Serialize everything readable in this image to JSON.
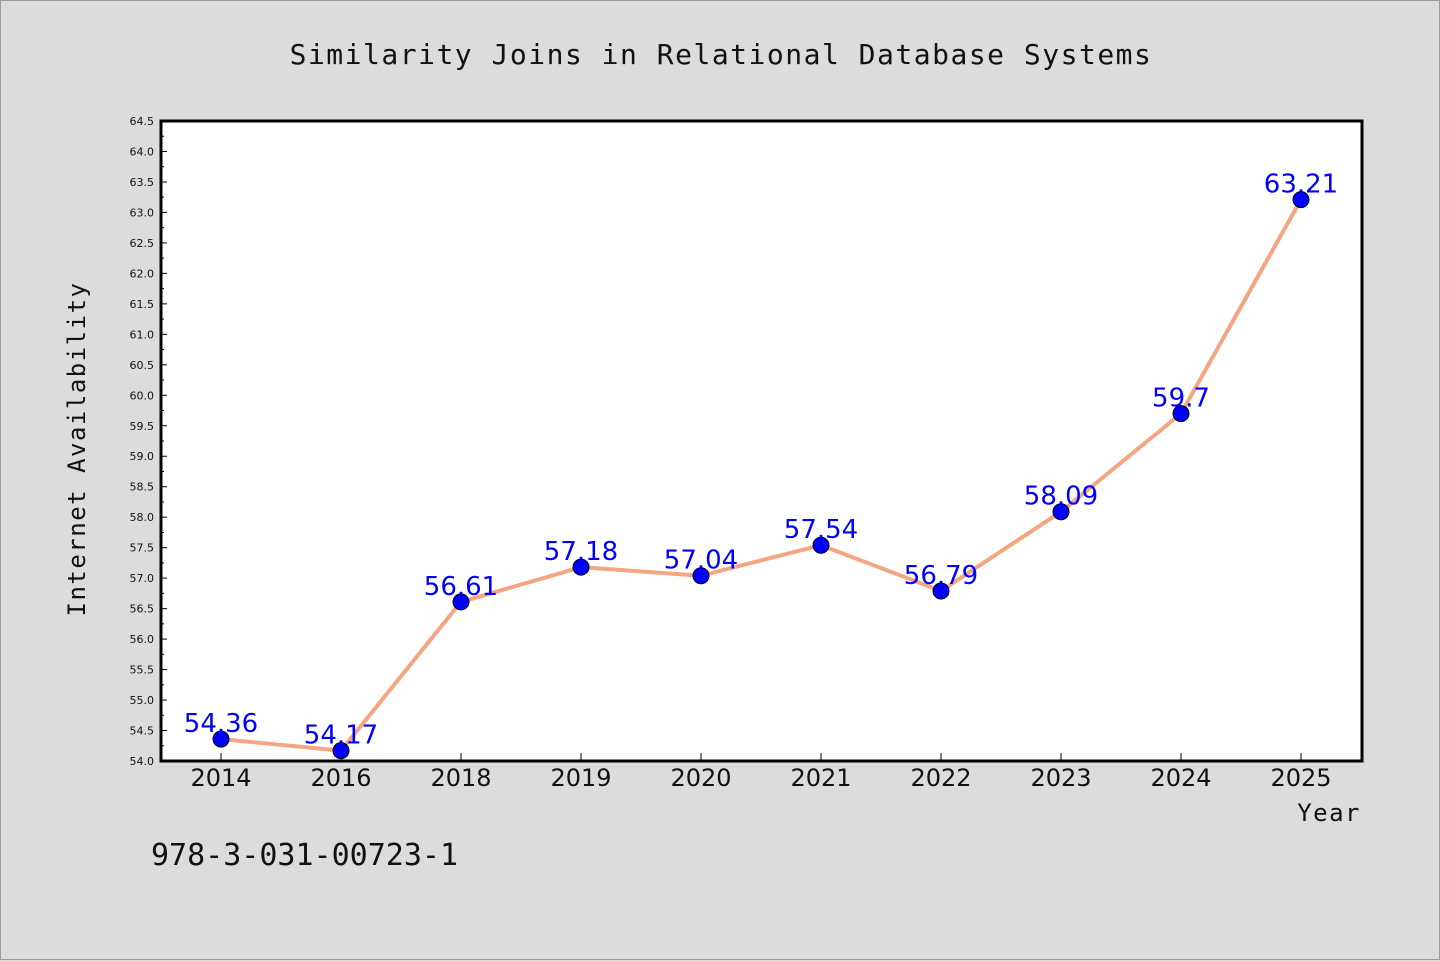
{
  "chart_data": {
    "type": "line",
    "title": "Similarity Joins in Relational Database Systems",
    "xlabel": "Year",
    "ylabel": "Internet Availability",
    "categories": [
      "2014",
      "2016",
      "2018",
      "2019",
      "2020",
      "2021",
      "2022",
      "2023",
      "2024",
      "2025"
    ],
    "series": [
      {
        "values": [
          54.36,
          54.17,
          56.61,
          57.18,
          57.04,
          57.54,
          56.79,
          58.09,
          59.7,
          63.21
        ],
        "labels": [
          "54.36",
          "54.17",
          "56.61",
          "57.18",
          "57.04",
          "57.54",
          "56.79",
          "58.09",
          "59.7",
          "63.21"
        ],
        "line_color": "#f4a582",
        "marker_color": "#0000ff"
      }
    ],
    "ylim": [
      54.0,
      64.5
    ],
    "yticks": [
      "54.0",
      "54.5",
      "55.0",
      "55.5",
      "56.0",
      "56.5",
      "57.0",
      "57.5",
      "58.0",
      "58.5",
      "59.0",
      "59.5",
      "60.0",
      "60.5",
      "61.0",
      "61.5",
      "62.0",
      "62.5",
      "63.0",
      "63.5",
      "64.0",
      "64.5"
    ],
    "grid": false,
    "legend": "none",
    "background_color": "#dcdcdc",
    "plot_background_color": "#ffffff"
  },
  "footnote": "978-3-031-00723-1"
}
